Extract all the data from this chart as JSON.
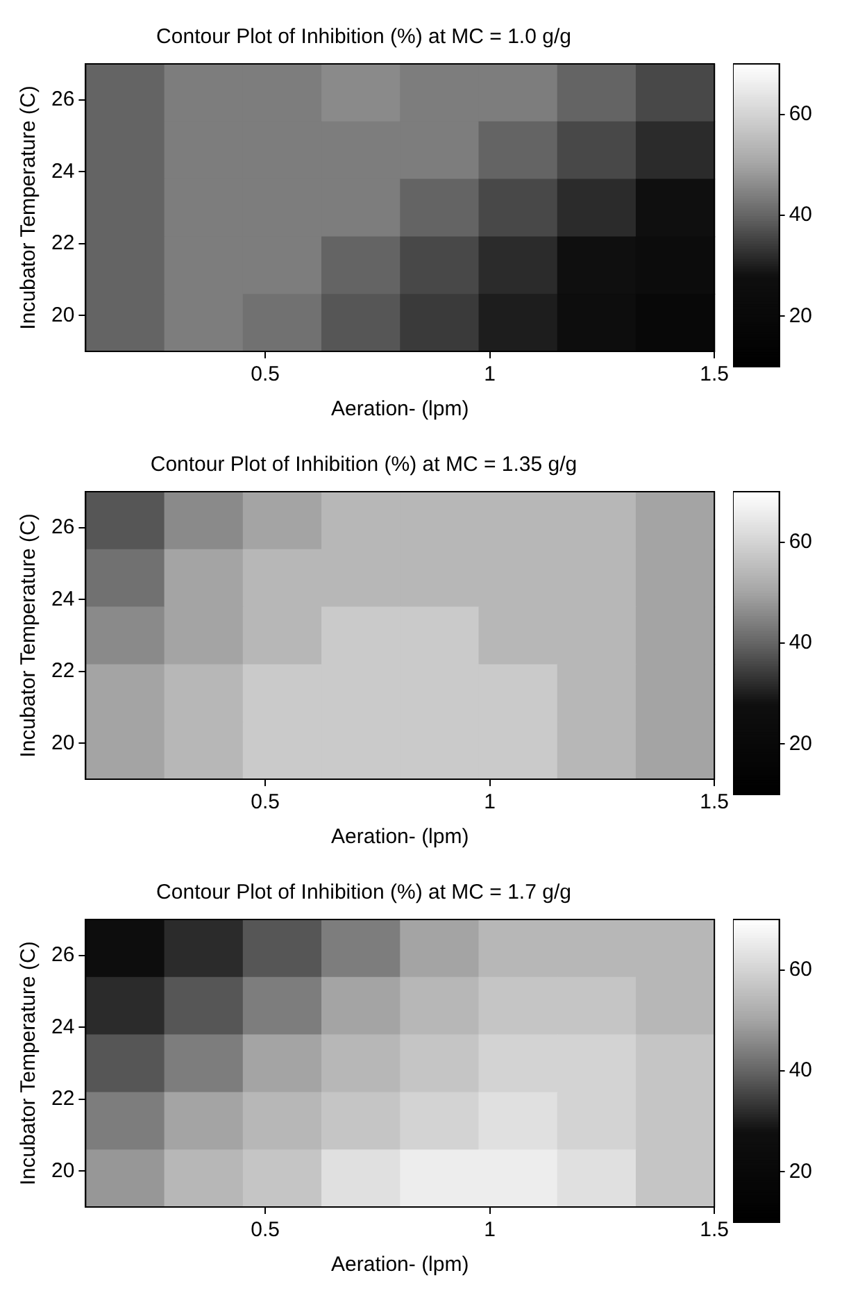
{
  "chart_data": [
    {
      "type": "heatmap",
      "title": "Contour Plot of Inhibition (%) at MC = 1.0 g/g",
      "xlabel": "Aeration- (lpm)",
      "ylabel": "Incubator Temperature (C)",
      "x": [
        0.1875,
        0.3625,
        0.5375,
        0.7125,
        0.8875,
        1.0625,
        1.2375,
        1.4125
      ],
      "y": [
        26.2,
        24.6,
        23.0,
        21.4,
        19.8
      ],
      "cells": [
        [
          40,
          44,
          44,
          46,
          44,
          44,
          40,
          36
        ],
        [
          40,
          44,
          44,
          44,
          44,
          40,
          36,
          32
        ],
        [
          40,
          44,
          44,
          44,
          40,
          36,
          32,
          28
        ],
        [
          40,
          44,
          44,
          40,
          36,
          32,
          28,
          24
        ],
        [
          40,
          44,
          42,
          38,
          34,
          30,
          26,
          20
        ]
      ],
      "xlim": [
        0.1,
        1.5
      ],
      "xticks": [
        0.5,
        1,
        1.5
      ],
      "ylim": [
        19,
        27
      ],
      "yticks": [
        20,
        22,
        24,
        26
      ],
      "clim": [
        10,
        70
      ],
      "cticks": [
        20,
        40,
        60
      ]
    },
    {
      "type": "heatmap",
      "title": "Contour Plot of Inhibition (%) at MC = 1.35 g/g",
      "xlabel": "Aeration- (lpm)",
      "ylabel": "Incubator Temperature (C)",
      "x": [
        0.1875,
        0.3625,
        0.5375,
        0.7125,
        0.8875,
        1.0625,
        1.2375,
        1.4125
      ],
      "y": [
        26.2,
        24.6,
        23.0,
        21.4,
        19.8
      ],
      "cells": [
        [
          38,
          46,
          50,
          54,
          54,
          54,
          54,
          50
        ],
        [
          42,
          50,
          54,
          54,
          54,
          54,
          54,
          50
        ],
        [
          46,
          50,
          54,
          58,
          58,
          54,
          54,
          50
        ],
        [
          50,
          54,
          58,
          58,
          58,
          58,
          54,
          50
        ],
        [
          50,
          54,
          58,
          58,
          58,
          58,
          54,
          50
        ]
      ],
      "xlim": [
        0.1,
        1.5
      ],
      "xticks": [
        0.5,
        1,
        1.5
      ],
      "ylim": [
        19,
        27
      ],
      "yticks": [
        20,
        22,
        24,
        26
      ],
      "clim": [
        10,
        70
      ],
      "cticks": [
        20,
        40,
        60
      ]
    },
    {
      "type": "heatmap",
      "title": "Contour Plot of Inhibition (%) at MC = 1.7 g/g",
      "xlabel": "Aeration- (lpm)",
      "ylabel": "Incubator Temperature (C)",
      "x": [
        0.1875,
        0.3625,
        0.5375,
        0.7125,
        0.8875,
        1.0625,
        1.2375,
        1.4125
      ],
      "y": [
        26.2,
        24.6,
        23.0,
        21.4,
        19.8
      ],
      "cells": [
        [
          26,
          32,
          38,
          44,
          50,
          54,
          54,
          54
        ],
        [
          32,
          38,
          44,
          50,
          54,
          57,
          57,
          54
        ],
        [
          38,
          44,
          50,
          54,
          57,
          60,
          60,
          57
        ],
        [
          44,
          50,
          54,
          57,
          60,
          63,
          60,
          57
        ],
        [
          48,
          54,
          57,
          63,
          66,
          66,
          63,
          57
        ]
      ],
      "xlim": [
        0.1,
        1.5
      ],
      "xticks": [
        0.5,
        1,
        1.5
      ],
      "ylim": [
        19,
        27
      ],
      "yticks": [
        20,
        22,
        24,
        26
      ],
      "clim": [
        10,
        70
      ],
      "cticks": [
        20,
        40,
        60
      ]
    }
  ]
}
